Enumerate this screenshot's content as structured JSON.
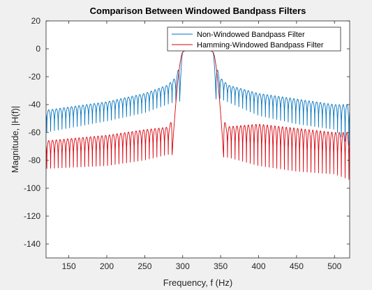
{
  "chart_data": {
    "type": "line",
    "title": "Comparison Between Windowed Bandpass Filters",
    "xlabel": "Frequency, f (Hz)",
    "ylabel": "Magnitude, |H(f)|",
    "xlim": [
      120,
      520
    ],
    "ylim": [
      -150,
      20
    ],
    "xticks": [
      150,
      200,
      250,
      300,
      350,
      400,
      450,
      500
    ],
    "yticks": [
      20,
      0,
      -20,
      -40,
      -60,
      -80,
      -100,
      -120,
      -140
    ],
    "xtick_labels": [
      "150",
      "200",
      "250",
      "300",
      "350",
      "400",
      "450",
      "500"
    ],
    "ytick_labels": [
      "20",
      "0",
      "-20",
      "-40",
      "-60",
      "-80",
      "-100",
      "-120",
      "-140"
    ],
    "grid": false,
    "legend_position": "top-right",
    "passband": [
      300,
      340
    ],
    "series": [
      {
        "name": "Non-Windowed Bandpass Filter",
        "color": "#0072bd",
        "lobe_spacing_hz": 5,
        "first_null_left_hz": 296,
        "first_null_right_hz": 344,
        "envelope": [
          [
            120,
            -44
          ],
          [
            200,
            -38
          ],
          [
            250,
            -32
          ],
          [
            280,
            -26
          ],
          [
            292,
            -20
          ],
          [
            300,
            0
          ],
          [
            340,
            0
          ],
          [
            348,
            -20
          ],
          [
            360,
            -26
          ],
          [
            400,
            -32
          ],
          [
            450,
            -36
          ],
          [
            500,
            -40
          ],
          [
            520,
            -40
          ]
        ],
        "null_depth": [
          [
            120,
            -60
          ],
          [
            200,
            -52
          ],
          [
            250,
            -46
          ],
          [
            290,
            -38
          ],
          [
            350,
            -36
          ],
          [
            400,
            -48
          ],
          [
            450,
            -54
          ],
          [
            500,
            -58
          ],
          [
            520,
            -70
          ]
        ]
      },
      {
        "name": "Hamming-Windowed Bandpass Filter",
        "color": "#d9000b",
        "lobe_spacing_hz": 5,
        "first_null_left_hz": 286,
        "first_null_right_hz": 354,
        "envelope": [
          [
            120,
            -66
          ],
          [
            200,
            -62
          ],
          [
            250,
            -58
          ],
          [
            283,
            -56
          ],
          [
            300,
            0
          ],
          [
            340,
            0
          ],
          [
            357,
            -56
          ],
          [
            400,
            -54
          ],
          [
            450,
            -57
          ],
          [
            500,
            -60
          ],
          [
            520,
            -60
          ]
        ],
        "null_depth": [
          [
            120,
            -86
          ],
          [
            200,
            -84
          ],
          [
            250,
            -80
          ],
          [
            280,
            -76
          ],
          [
            360,
            -78
          ],
          [
            400,
            -84
          ],
          [
            450,
            -88
          ],
          [
            500,
            -90
          ],
          [
            520,
            -94
          ]
        ]
      }
    ]
  }
}
